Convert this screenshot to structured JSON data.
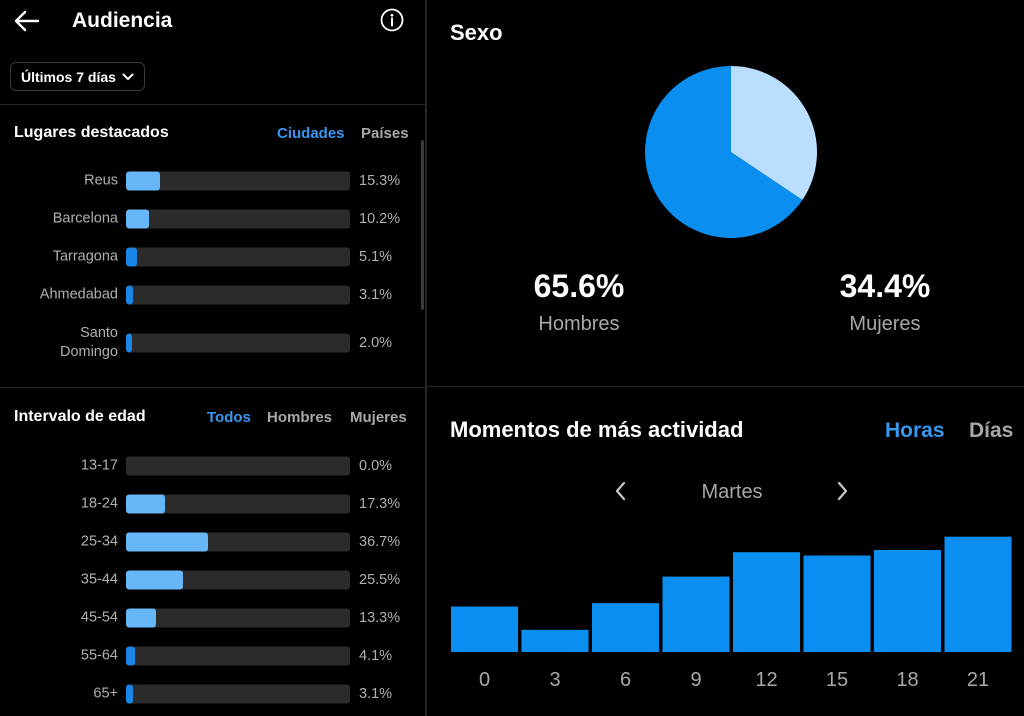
{
  "header": {
    "title": "Audiencia",
    "back_icon": "back-arrow-icon",
    "info_icon": "info-icon"
  },
  "period": {
    "label": "Últimos 7 días"
  },
  "places": {
    "title": "Lugares destacados",
    "tabs": [
      {
        "label": "Ciudades",
        "active": true
      },
      {
        "label": "Países",
        "active": false
      }
    ],
    "rows": [
      {
        "label": "Reus",
        "value": 15.3,
        "pct": "15.3%"
      },
      {
        "label": "Barcelona",
        "value": 10.2,
        "pct": "10.2%"
      },
      {
        "label": "Tarragona",
        "value": 5.1,
        "pct": "5.1%"
      },
      {
        "label": "Ahmedabad",
        "value": 3.1,
        "pct": "3.1%"
      },
      {
        "label": "Santo Domingo",
        "value": 2.0,
        "pct": "2.0%"
      }
    ]
  },
  "age": {
    "title": "Intervalo de edad",
    "tabs": [
      {
        "label": "Todos",
        "active": true
      },
      {
        "label": "Hombres",
        "active": false
      },
      {
        "label": "Mujeres",
        "active": false
      }
    ],
    "rows": [
      {
        "label": "13-17",
        "value": 0.0,
        "pct": "0.0%"
      },
      {
        "label": "18-24",
        "value": 17.3,
        "pct": "17.3%"
      },
      {
        "label": "25-34",
        "value": 36.7,
        "pct": "36.7%"
      },
      {
        "label": "35-44",
        "value": 25.5,
        "pct": "25.5%"
      },
      {
        "label": "45-54",
        "value": 13.3,
        "pct": "13.3%"
      },
      {
        "label": "55-64",
        "value": 4.1,
        "pct": "4.1%"
      },
      {
        "label": "65+",
        "value": 3.1,
        "pct": "3.1%"
      }
    ]
  },
  "sex": {
    "title": "Sexo",
    "men": {
      "pct": "65.6%",
      "label": "Hombres",
      "value": 65.6,
      "color": "#0a8ef0"
    },
    "women": {
      "pct": "34.4%",
      "label": "Mujeres",
      "value": 34.4,
      "color": "#b9deff"
    }
  },
  "activity": {
    "title": "Momentos de más actividad",
    "tabs": [
      {
        "label": "Horas",
        "active": true
      },
      {
        "label": "Días",
        "active": false
      }
    ],
    "day": "Martes",
    "prev_icon": "chevron-left-icon",
    "next_icon": "chevron-right-icon"
  },
  "chart_data": {
    "type": "bar",
    "categories": [
      "0",
      "3",
      "6",
      "9",
      "12",
      "15",
      "18",
      "21"
    ],
    "values": [
      41,
      20,
      44,
      68,
      90,
      87,
      92,
      104
    ],
    "ylim": [
      0,
      110
    ],
    "bar_color": "#0a8ef0",
    "grid": false
  },
  "colors": {
    "accent": "#3897f0",
    "bar_light": "#66b6f8",
    "bar_dark": "#1a86e8",
    "track": "#2b2b2b"
  }
}
